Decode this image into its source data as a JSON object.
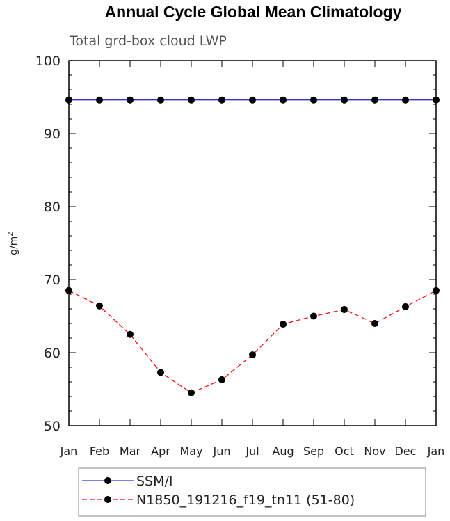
{
  "chart_data": {
    "type": "line",
    "title": "Annual Cycle Global Mean Climatology",
    "subtitle": "Total grd-box cloud LWP",
    "xlabel": "",
    "ylabel": "g/m",
    "ylabel_sup": "2",
    "categories": [
      "Jan",
      "Feb",
      "Mar",
      "Apr",
      "May",
      "Jun",
      "Jul",
      "Aug",
      "Sep",
      "Oct",
      "Nov",
      "Dec",
      "Jan"
    ],
    "ylim": [
      50,
      100
    ],
    "yticks": [
      "50",
      "60",
      "70",
      "80",
      "90",
      "100"
    ],
    "series": [
      {
        "name": "SSM/I",
        "color": "#3333cc",
        "dashed": false,
        "values": [
          94.6,
          94.6,
          94.6,
          94.6,
          94.6,
          94.6,
          94.6,
          94.6,
          94.6,
          94.6,
          94.6,
          94.6,
          94.6
        ]
      },
      {
        "name": "N1850_191216_f19_tn11 (51-80)",
        "color": "#ee1111",
        "dashed": true,
        "values": [
          68.5,
          66.4,
          62.5,
          57.3,
          54.5,
          56.3,
          59.7,
          63.9,
          65.0,
          65.9,
          64.0,
          66.3,
          68.5
        ]
      }
    ],
    "legend_position": "bottom"
  }
}
